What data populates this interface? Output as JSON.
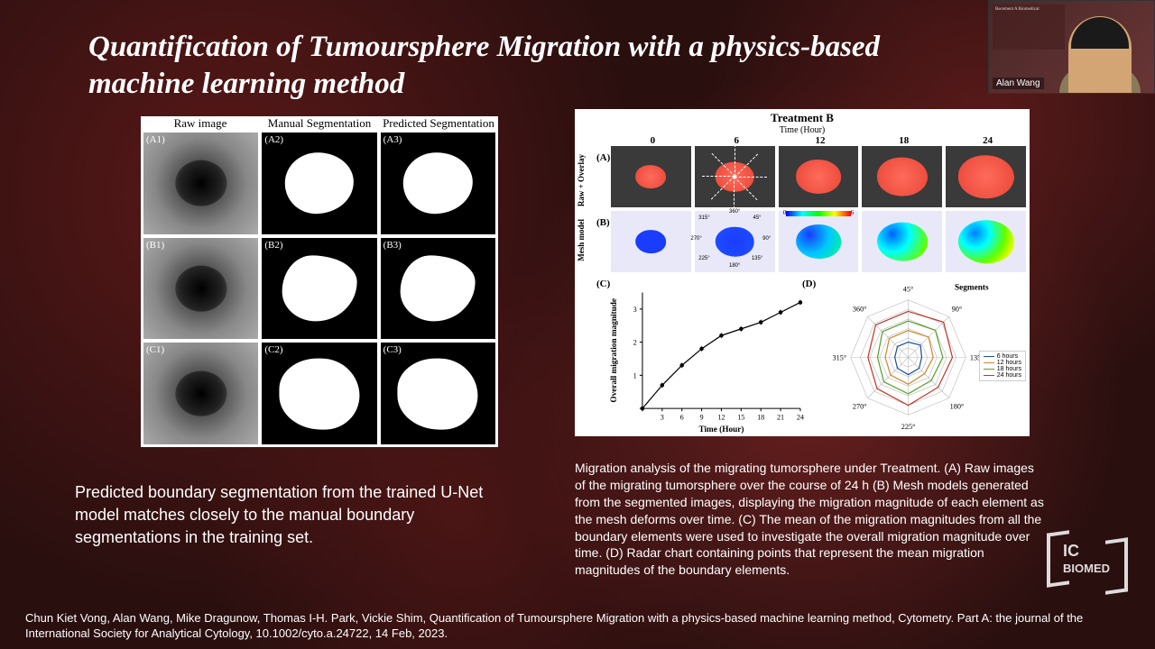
{
  "title": "Quantification of Tumoursphere Migration with a physics-based machine learning method",
  "webcam": {
    "name": "Alan Wang",
    "slide_text": "Recement A\nBiomedical"
  },
  "left_fig": {
    "headers": [
      "Raw image",
      "Manual Segmentation",
      "Predicted Segmentation"
    ],
    "labels": [
      "(A1)",
      "(A2)",
      "(A3)",
      "(B1)",
      "(B2)",
      "(B3)",
      "(C1)",
      "(C2)",
      "(C3)"
    ]
  },
  "left_caption": "Predicted boundary segmentation from the trained U-Net model matches closely to the manual boundary segmentations in the training set.",
  "right_fig": {
    "title": "Treatment B",
    "subtitle": "Time (Hour)",
    "times": [
      "0",
      "6",
      "12",
      "18",
      "24"
    ],
    "panel_labels": [
      "(A)",
      "(B)",
      "(C)",
      "(D)"
    ],
    "row_labels": [
      "Raw + Overlay",
      "Mesh model"
    ],
    "blob_sizes": [
      38,
      48,
      56,
      63,
      70
    ],
    "angle_marks": [
      "360°",
      "45°",
      "90°",
      "135°",
      "180°",
      "225°",
      "270°",
      "315°"
    ],
    "colorbar": {
      "min": "0",
      "max": "6"
    },
    "line_chart": {
      "xlabel": "Time (Hour)",
      "ylabel": "Overall migration magnitude",
      "xticks": [
        0,
        3,
        6,
        9,
        12,
        15,
        18,
        21,
        24
      ],
      "yticks": [
        0,
        1,
        2,
        3
      ],
      "points_x": [
        0,
        3,
        6,
        9,
        12,
        15,
        18,
        21,
        24
      ],
      "points_y": [
        0.0,
        0.7,
        1.3,
        1.8,
        2.2,
        2.4,
        2.6,
        2.9,
        3.2
      ]
    },
    "radar": {
      "segments_label": "Segments",
      "axis_label": "45°",
      "angles": [
        "45°",
        "90°",
        "135°",
        "180°",
        "225°",
        "270°",
        "315°",
        "360°"
      ],
      "legend": [
        {
          "label": "6 hours",
          "color": "#1f4e9c"
        },
        {
          "label": "12 hours",
          "color": "#d4872a"
        },
        {
          "label": "18 hours",
          "color": "#5aa02c"
        },
        {
          "label": "24 hours",
          "color": "#c0392b"
        }
      ],
      "series": [
        [
          0.8,
          0.9,
          0.7,
          0.8,
          0.9,
          0.8,
          0.7,
          0.8
        ],
        [
          1.4,
          1.5,
          1.3,
          1.2,
          1.4,
          1.3,
          1.2,
          1.4
        ],
        [
          1.9,
          2.0,
          1.8,
          1.7,
          1.9,
          1.8,
          1.6,
          1.9
        ],
        [
          2.4,
          2.6,
          2.3,
          2.2,
          2.5,
          2.3,
          2.1,
          2.4
        ]
      ]
    }
  },
  "right_caption": "Migration analysis of the migrating tumorsphere under Treatment. (A) Raw images of the migrating tumorsphere over the course of 24 h (B) Mesh models generated from the segmented images, displaying the migration magnitude of each element as the mesh deforms over time. (C) The mean of the migration magnitudes from all the boundary elements were used to investigate the overall migration magnitude over time. (D) Radar chart containing points that represent the mean migration magnitudes of the boundary elements.",
  "citation": "Chun Kiet Vong, Alan Wang, Mike Dragunow, Thomas I-H. Park, Vickie Shim, Quantification of Tumoursphere Migration with a physics-based machine learning method, Cytometry. Part A: the journal of the International Society for Analytical Cytology, 10.1002/cyto.a.24722, 14 Feb, 2023.",
  "watermark": {
    "line1": "IC",
    "line2": "BIOMED"
  }
}
